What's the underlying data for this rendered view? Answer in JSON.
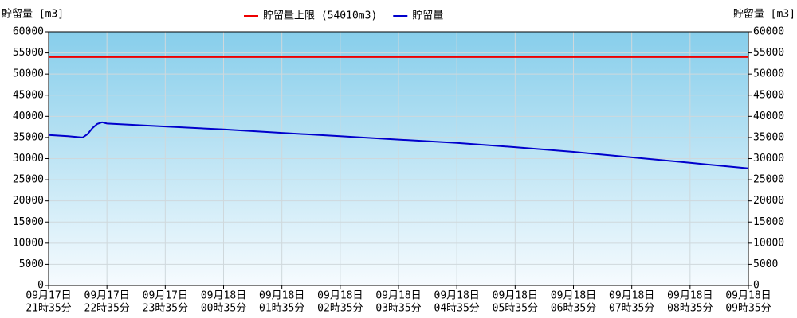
{
  "chart_data": {
    "type": "line",
    "y_label": "貯留量 [m3]",
    "ylim": [
      0,
      60000
    ],
    "yticks": [
      0,
      5000,
      10000,
      15000,
      20000,
      25000,
      30000,
      35000,
      40000,
      45000,
      50000,
      55000,
      60000
    ],
    "xlim": [
      "09月17日21時35分",
      "09月18日09時35分"
    ],
    "xticks": [
      {
        "date": "09月17日",
        "time": "21時35分"
      },
      {
        "date": "09月17日",
        "time": "22時35分"
      },
      {
        "date": "09月17日",
        "time": "23時35分"
      },
      {
        "date": "09月18日",
        "time": "00時35分"
      },
      {
        "date": "09月18日",
        "time": "01時35分"
      },
      {
        "date": "09月18日",
        "time": "02時35分"
      },
      {
        "date": "09月18日",
        "time": "03時35分"
      },
      {
        "date": "09月18日",
        "time": "04時35分"
      },
      {
        "date": "09月18日",
        "time": "05時35分"
      },
      {
        "date": "09月18日",
        "time": "06時35分"
      },
      {
        "date": "09月18日",
        "time": "07時35分"
      },
      {
        "date": "09月18日",
        "time": "08時35分"
      },
      {
        "date": "09月18日",
        "time": "09時35分"
      }
    ],
    "grid": true,
    "threshold": {
      "name": "貯留量上限 (54010m3)",
      "value": 54010,
      "color": "#ee0000"
    },
    "series": [
      {
        "name": "貯留量",
        "color": "#0000cc",
        "x": [
          "09月17日21時35分",
          "09月17日21時55分",
          "09月17日22時05分",
          "09月17日22時10分",
          "09月17日22時15分",
          "09月17日22時20分",
          "09月17日22時25分",
          "09月17日22時30分",
          "09月17日22時35分",
          "09月17日23時35分",
          "09月18日00時35分",
          "09月18日01時35分",
          "09月18日02時35分",
          "09月18日03時35分",
          "09月18日04時35分",
          "09月18日05時35分",
          "09月18日06時35分",
          "09月18日07時35分",
          "09月18日08時35分",
          "09月18日09時35分"
        ],
        "values": [
          35600,
          35300,
          35100,
          35000,
          35800,
          37200,
          38200,
          38600,
          38300,
          37600,
          36900,
          36100,
          35300,
          34500,
          33700,
          32700,
          31600,
          30300,
          29000,
          27700
        ]
      }
    ]
  }
}
